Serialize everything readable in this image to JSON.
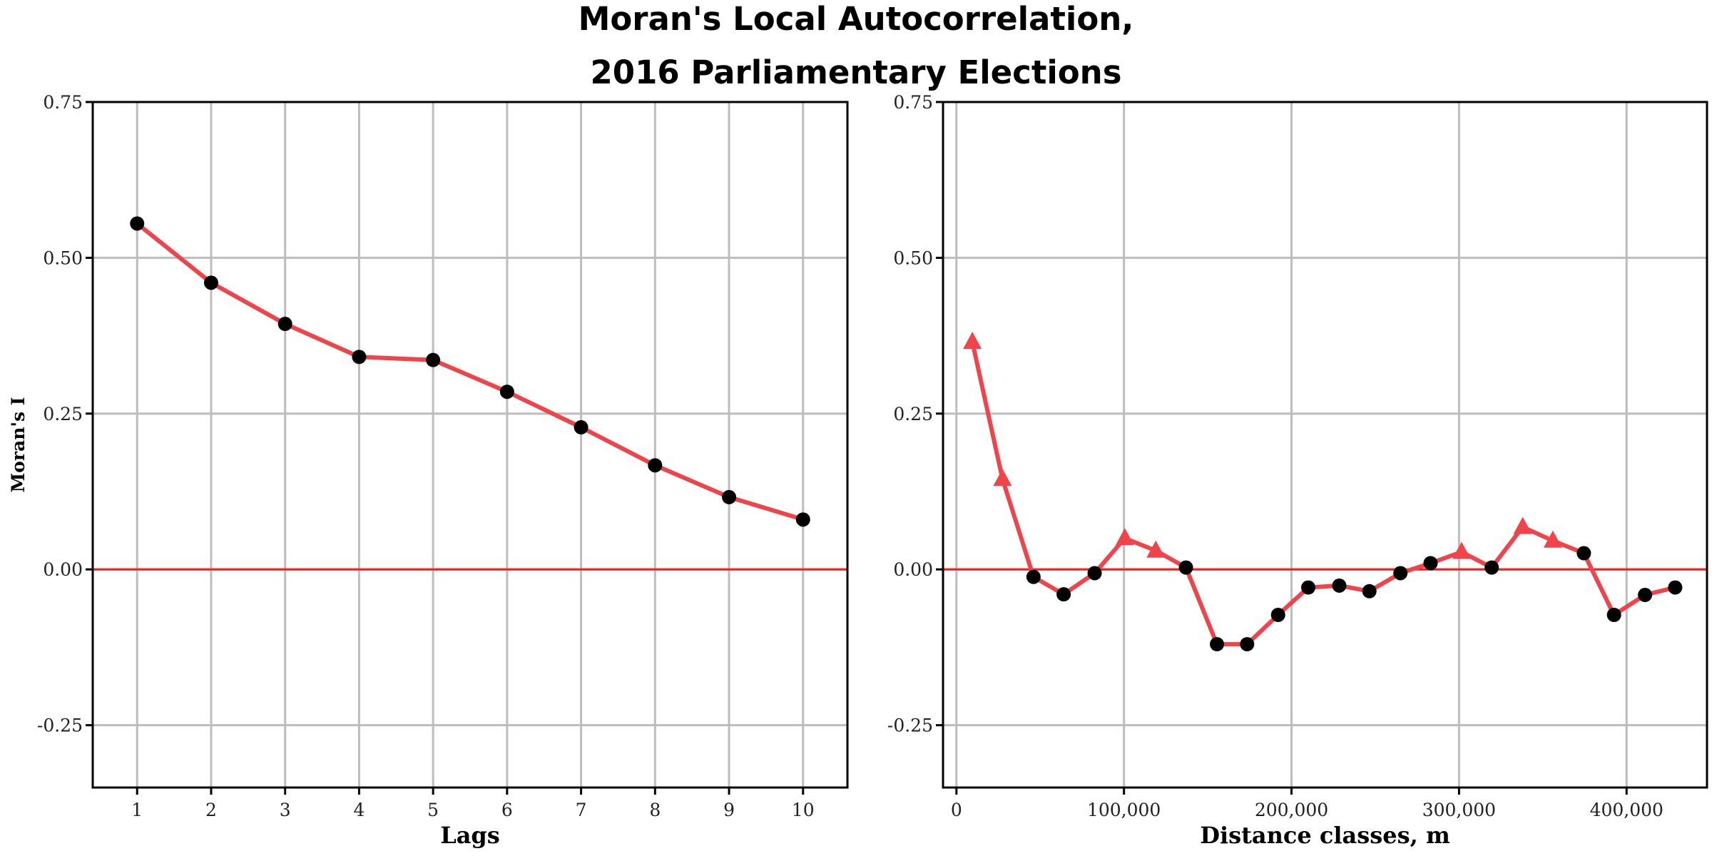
{
  "title_lines": [
    "Moran's Local Autocorrelation,",
    "2016 Parliamentary Elections"
  ],
  "colors": {
    "line": "#f0434a",
    "reference": "#ff1a1a",
    "marker": "#000000",
    "grid": "#bdbdbd"
  },
  "chart_data": [
    {
      "type": "line",
      "xlabel": "Lags",
      "ylabel": "Moran's I",
      "xlim": [
        0.4,
        10.6
      ],
      "ylim": [
        -0.35,
        0.75
      ],
      "xticks": [
        1,
        2,
        3,
        4,
        5,
        6,
        7,
        8,
        9,
        10
      ],
      "xtick_labels": [
        "1",
        "2",
        "3",
        "4",
        "5",
        "6",
        "7",
        "8",
        "9",
        "10"
      ],
      "yticks": [
        -0.25,
        0,
        0.25,
        0.5,
        0.75
      ],
      "ytick_labels": [
        "-0.25",
        "0.00",
        "0.25",
        "0.50",
        "0.75"
      ],
      "reference_line": 0,
      "grid": true,
      "points": [
        {
          "x": 1,
          "y": 0.555,
          "marker": "circle"
        },
        {
          "x": 2,
          "y": 0.46,
          "marker": "circle"
        },
        {
          "x": 3,
          "y": 0.394,
          "marker": "circle"
        },
        {
          "x": 4,
          "y": 0.341,
          "marker": "circle"
        },
        {
          "x": 5,
          "y": 0.336,
          "marker": "circle"
        },
        {
          "x": 6,
          "y": 0.285,
          "marker": "circle"
        },
        {
          "x": 7,
          "y": 0.228,
          "marker": "circle"
        },
        {
          "x": 8,
          "y": 0.167,
          "marker": "circle"
        },
        {
          "x": 9,
          "y": 0.116,
          "marker": "circle"
        },
        {
          "x": 10,
          "y": 0.08,
          "marker": "circle"
        }
      ]
    },
    {
      "type": "line",
      "xlabel": "Distance classes, m",
      "ylabel": "",
      "xlim": [
        -8000,
        448000
      ],
      "ylim": [
        -0.35,
        0.75
      ],
      "xticks": [
        0,
        100000,
        200000,
        300000,
        400000
      ],
      "xtick_labels": [
        "0",
        "100,000",
        "200,000",
        "300,000",
        "400,000"
      ],
      "yticks": [
        -0.25,
        0,
        0.25,
        0.5,
        0.75
      ],
      "ytick_labels": [
        "-0.25",
        "0.00",
        "0.25",
        "0.50",
        "0.75"
      ],
      "reference_line": 0,
      "grid": true,
      "points": [
        {
          "x": 9500,
          "y": 0.365,
          "marker": "triangle"
        },
        {
          "x": 27500,
          "y": 0.145,
          "marker": "triangle"
        },
        {
          "x": 46000,
          "y": -0.012,
          "marker": "circle"
        },
        {
          "x": 64000,
          "y": -0.04,
          "marker": "circle"
        },
        {
          "x": 82500,
          "y": -0.006,
          "marker": "circle"
        },
        {
          "x": 100500,
          "y": 0.05,
          "marker": "triangle"
        },
        {
          "x": 119000,
          "y": 0.03,
          "marker": "triangle"
        },
        {
          "x": 137000,
          "y": 0.003,
          "marker": "circle"
        },
        {
          "x": 155500,
          "y": -0.12,
          "marker": "circle"
        },
        {
          "x": 173500,
          "y": -0.12,
          "marker": "circle"
        },
        {
          "x": 192000,
          "y": -0.073,
          "marker": "circle"
        },
        {
          "x": 210000,
          "y": -0.029,
          "marker": "circle"
        },
        {
          "x": 228500,
          "y": -0.026,
          "marker": "circle"
        },
        {
          "x": 246500,
          "y": -0.035,
          "marker": "circle"
        },
        {
          "x": 265000,
          "y": -0.006,
          "marker": "circle"
        },
        {
          "x": 283000,
          "y": 0.01,
          "marker": "circle"
        },
        {
          "x": 301500,
          "y": 0.028,
          "marker": "triangle"
        },
        {
          "x": 319500,
          "y": 0.003,
          "marker": "circle"
        },
        {
          "x": 338000,
          "y": 0.068,
          "marker": "triangle"
        },
        {
          "x": 356000,
          "y": 0.046,
          "marker": "triangle"
        },
        {
          "x": 374500,
          "y": 0.026,
          "marker": "circle"
        },
        {
          "x": 392500,
          "y": -0.073,
          "marker": "circle"
        },
        {
          "x": 411000,
          "y": -0.041,
          "marker": "circle"
        },
        {
          "x": 429000,
          "y": -0.029,
          "marker": "circle"
        }
      ]
    }
  ]
}
